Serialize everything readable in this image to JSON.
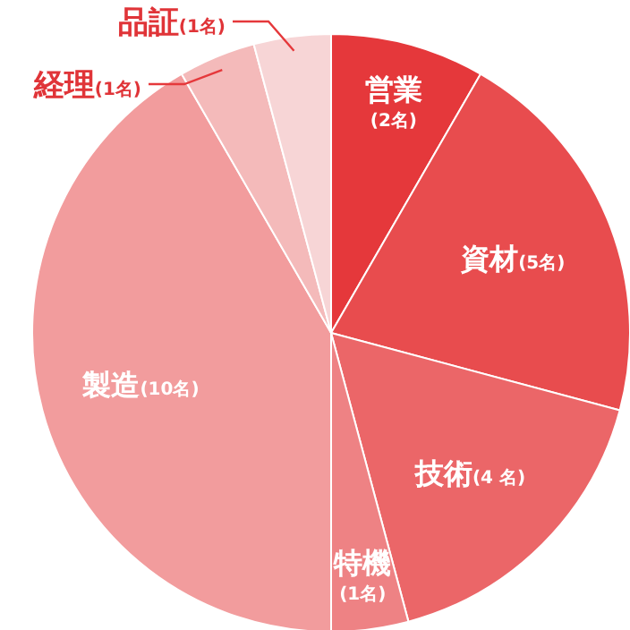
{
  "chart_data": {
    "type": "pie",
    "categories": [
      "営業",
      "資材",
      "技術",
      "特機",
      "製造",
      "経理",
      "品証"
    ],
    "values": [
      2,
      5,
      4,
      1,
      10,
      1,
      1
    ],
    "value_labels": [
      "(2名)",
      "(5名)",
      "(4 名)",
      "(1名)",
      "(10名)",
      "(1名)",
      "(1名)"
    ],
    "colors": [
      "#e5383b",
      "#e84c4e",
      "#eb6668",
      "#ee8284",
      "#f29c9d",
      "#f4baba",
      "#f7d5d6"
    ],
    "legend": false
  }
}
